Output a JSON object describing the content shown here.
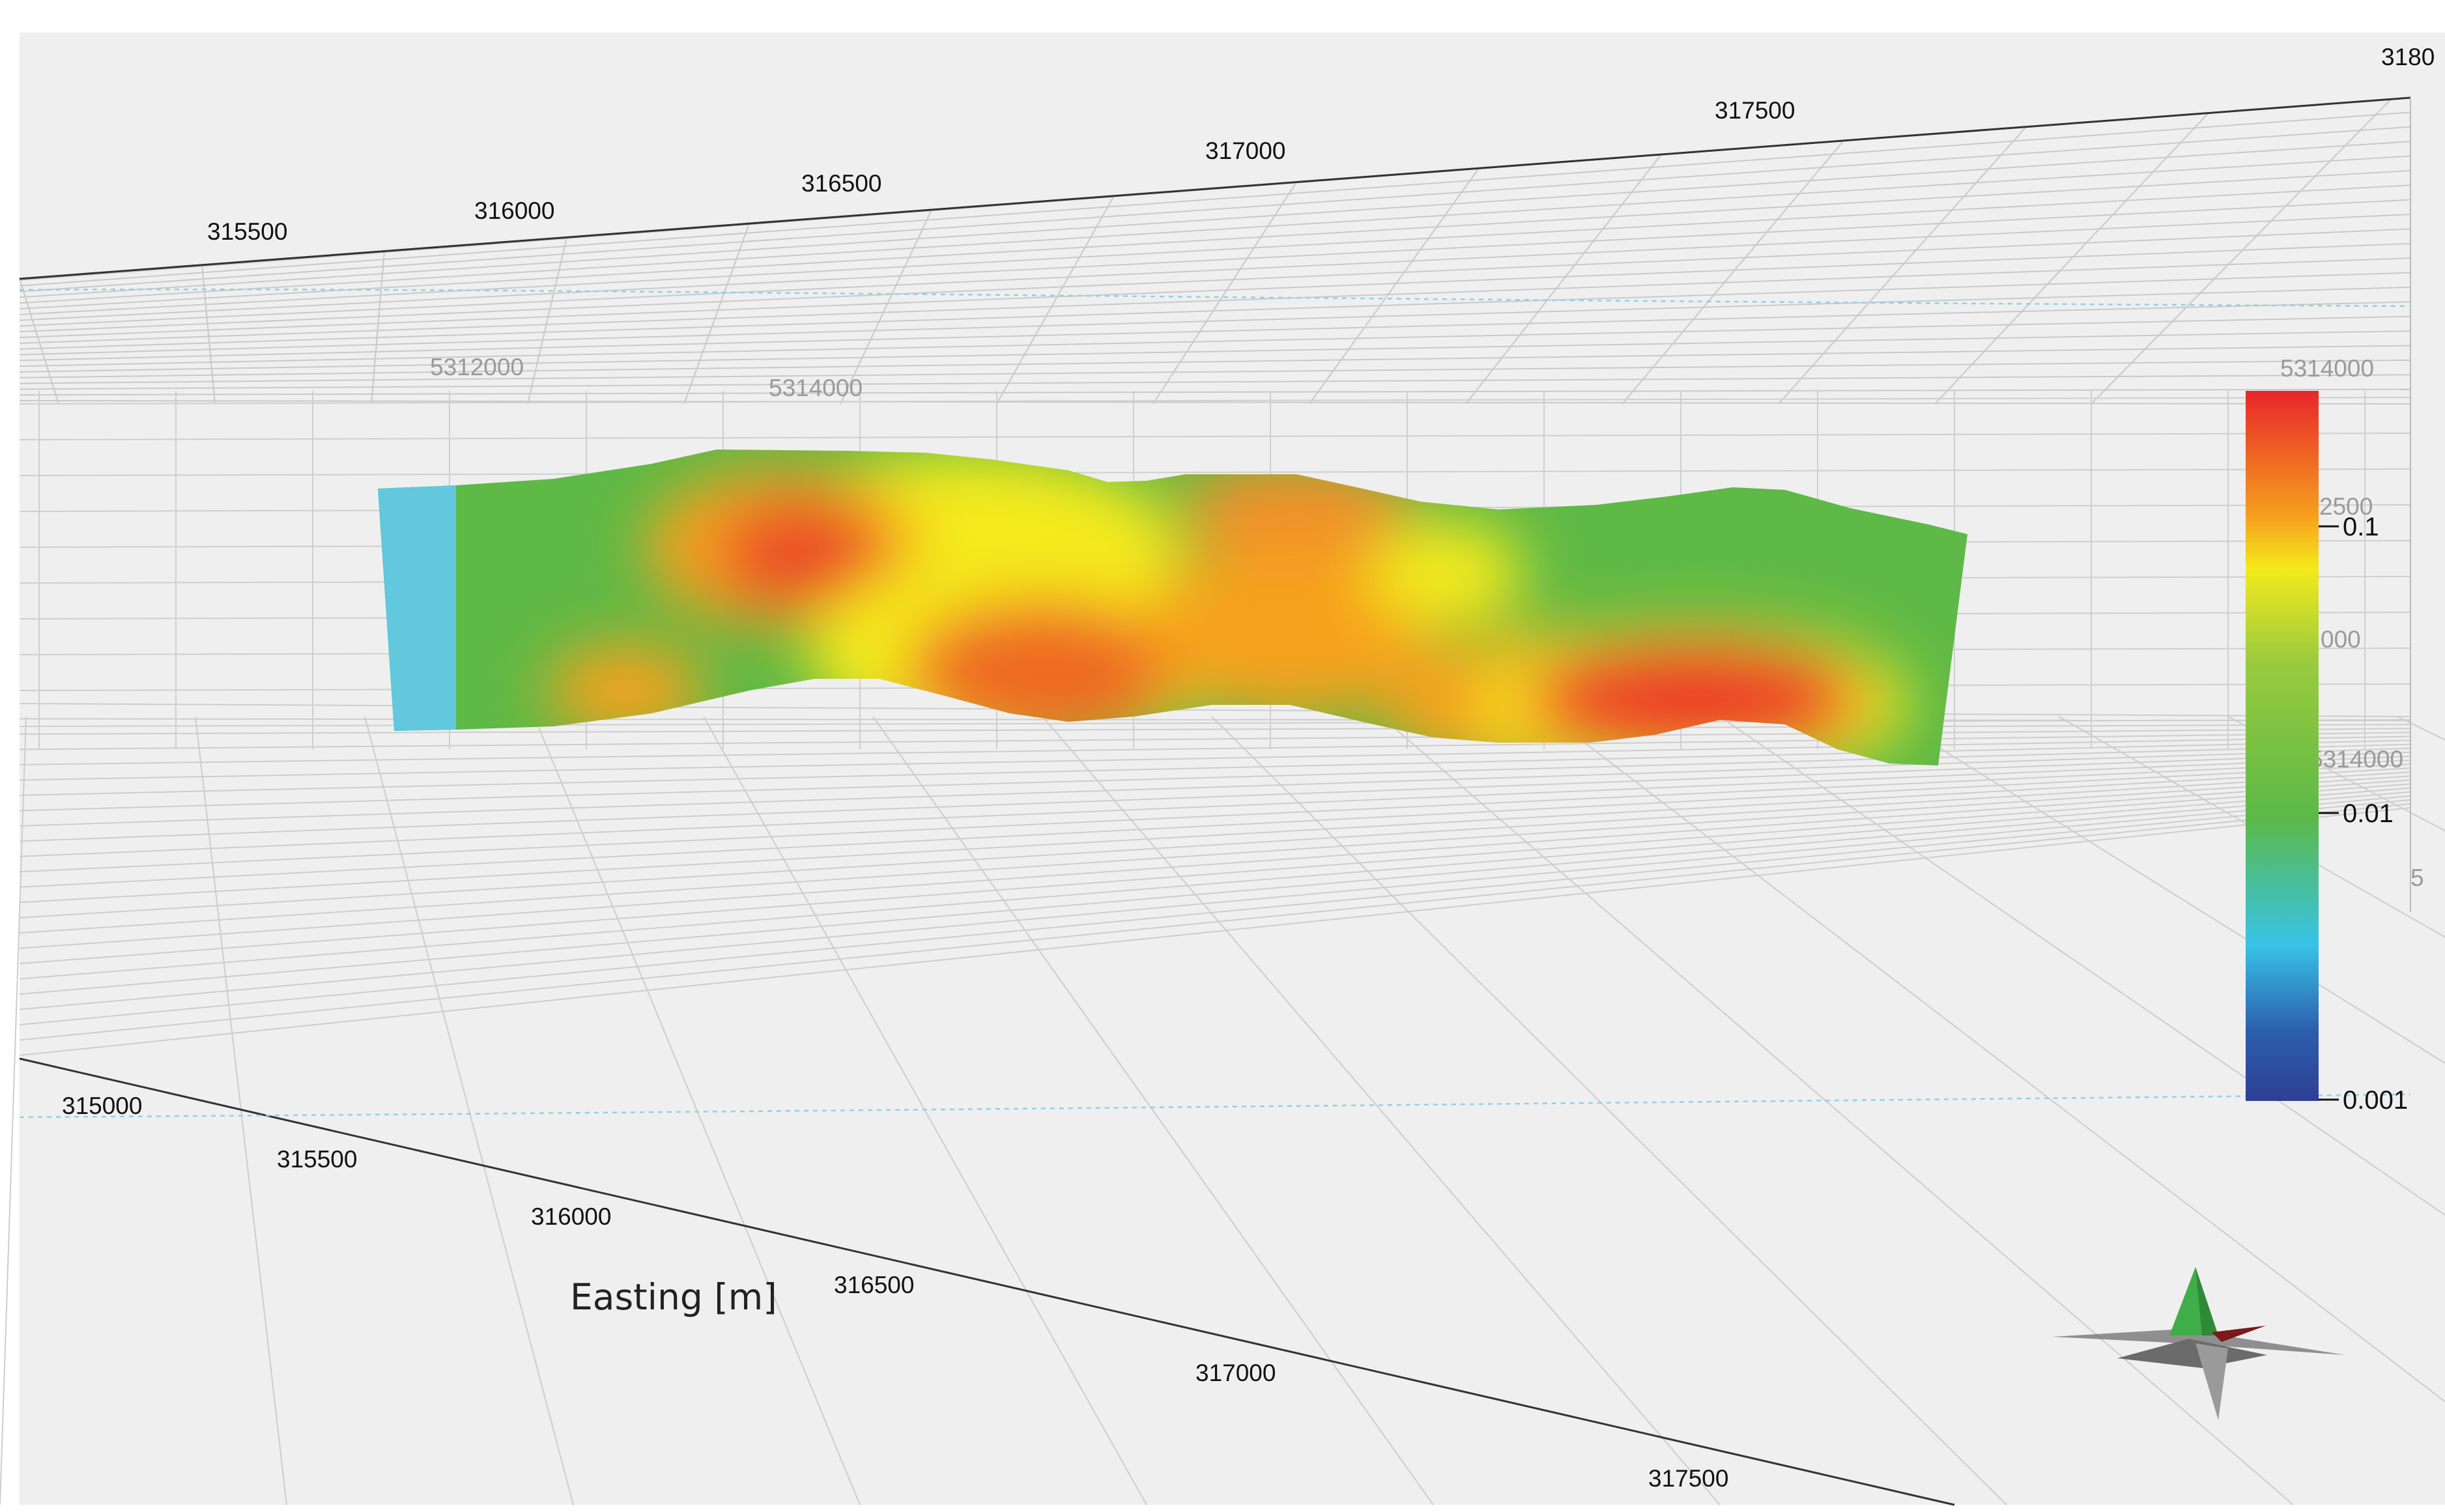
{
  "viewer": {
    "top_easting_ticks": [
      "315500",
      "316000",
      "316500",
      "317000",
      "317500",
      "3180"
    ],
    "far_northing_ticks": [
      "5312000",
      "5314000",
      "5314000"
    ],
    "bottom_easting_ticks": [
      "315000",
      "315500",
      "316000",
      "316500",
      "317000",
      "317500"
    ],
    "side_fragments": [
      "2500",
      "000",
      "5314000",
      "5"
    ],
    "axis_title": "Easting [m]"
  },
  "colorbar": {
    "scale": "logarithmic",
    "labels": [
      "0.1",
      "0.01",
      "0.001"
    ],
    "colors": [
      "#e8262b",
      "#f6a21e",
      "#f4ea1c",
      "#9bcb3e",
      "#5cb947",
      "#38c3e6",
      "#2c5fad",
      "#2e3f94"
    ]
  },
  "compass": {
    "colors": {
      "north": "#3fae49",
      "east": "#7a1a1a",
      "body": "#6b6b6b"
    }
  },
  "section": {
    "palette": {
      "high": "#e8262b",
      "mid": "#f4ea1c",
      "low": "#5cb947",
      "min": "#62c8dd"
    }
  }
}
